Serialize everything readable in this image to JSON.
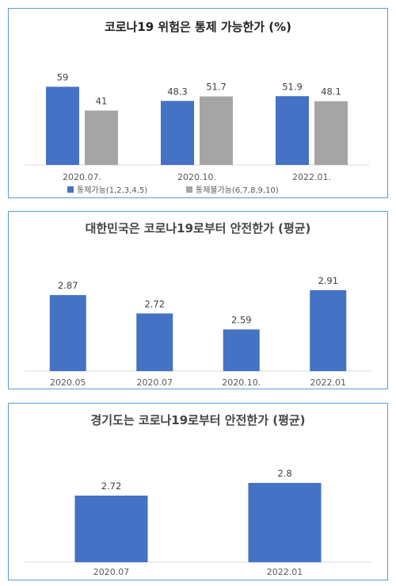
{
  "colors": {
    "blue": "#4472c4",
    "gray": "#a5a5a5",
    "border": "#5b9bd5"
  },
  "chart_data": [
    {
      "type": "bar",
      "title": "코로나19 위험은 통제 가능한가 (%)",
      "categories": [
        "2020.07.",
        "2020.10.",
        "2022.01."
      ],
      "series": [
        {
          "name": "통제가능(1,2,3,4,5)",
          "values": [
            59,
            48.3,
            51.9
          ]
        },
        {
          "name": "통제불가능(6,7,8,9,10)",
          "values": [
            41,
            51.7,
            48.1
          ]
        }
      ],
      "legend": "bottom",
      "ylim": [
        0,
        70
      ],
      "grid": false
    },
    {
      "type": "bar",
      "title": "대한민국은 코로나19로부터 안전한가 (평균)",
      "categories": [
        "2020.05",
        "2020.07",
        "2020.10.",
        "2022.01"
      ],
      "values": [
        2.87,
        2.72,
        2.59,
        2.91
      ],
      "ylim": [
        2.25,
        3.0
      ],
      "grid": false
    },
    {
      "type": "bar",
      "title": "경기도는 코로나19로부터 안전한가 (평균)",
      "categories": [
        "2020.07",
        "2022.01"
      ],
      "values": [
        2.72,
        2.8
      ],
      "ylim": [
        2.3,
        2.9
      ],
      "grid": false
    }
  ]
}
